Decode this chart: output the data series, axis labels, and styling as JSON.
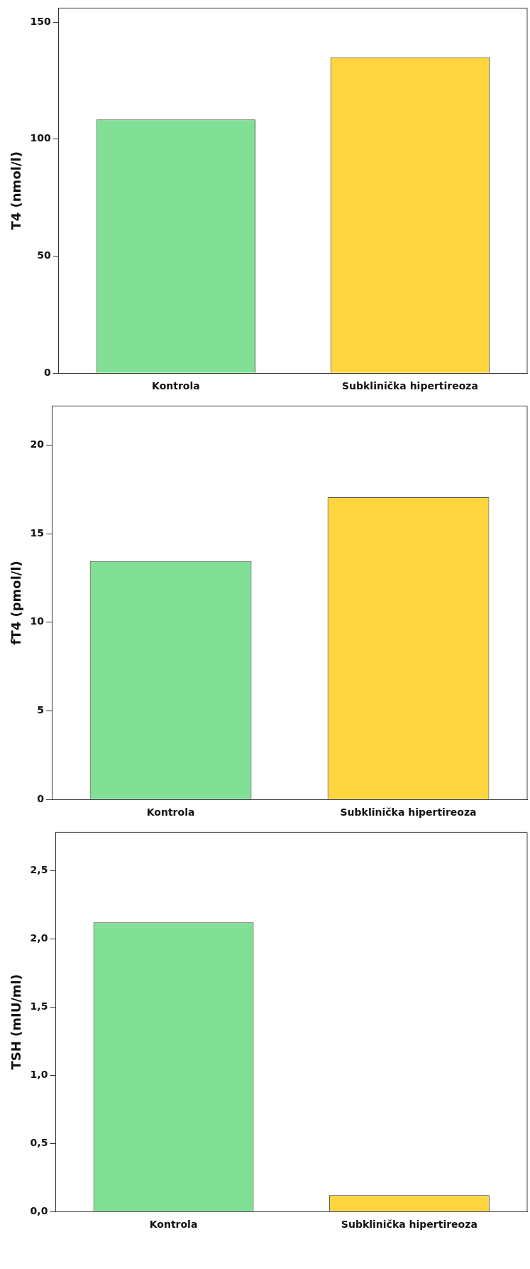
{
  "chart_data": [
    {
      "type": "bar",
      "ylabel": "T4 (nmol/l)",
      "categories": [
        "Kontrola",
        "Subklinička hipertireoza"
      ],
      "values": [
        108.4,
        135
      ],
      "colors": [
        "#82e096",
        "#fed43f"
      ],
      "ylim": [
        0,
        156
      ],
      "yticks": [
        0,
        50,
        100,
        150
      ],
      "grid": false,
      "legend": false
    },
    {
      "type": "bar",
      "ylabel": "fT4 (pmol/l)",
      "categories": [
        "Kontrola",
        "Subklinička hipertireoza"
      ],
      "values": [
        13.45,
        17.04
      ],
      "colors": [
        "#82e096",
        "#fed43f"
      ],
      "ylim": [
        0,
        22.2
      ],
      "yticks": [
        0,
        5,
        10,
        15,
        20
      ],
      "grid": false,
      "legend": false
    },
    {
      "type": "bar",
      "ylabel": "TSH (mIU/ml)",
      "categories": [
        "Kontrola",
        "Subklinička hipertireoza"
      ],
      "values": [
        2.12,
        0.12
      ],
      "colors": [
        "#82e096",
        "#fed43f"
      ],
      "ylim": [
        0,
        2.78
      ],
      "yticks": [
        {
          "value": 0,
          "label": "0,0"
        },
        {
          "value": 0.5,
          "label": "0,5"
        },
        {
          "value": 1,
          "label": "1,0"
        },
        {
          "value": 1.5,
          "label": "1,5"
        },
        {
          "value": 2,
          "label": "2,0"
        },
        {
          "value": 2.5,
          "label": "2,5"
        }
      ],
      "grid": false,
      "legend": false
    }
  ]
}
